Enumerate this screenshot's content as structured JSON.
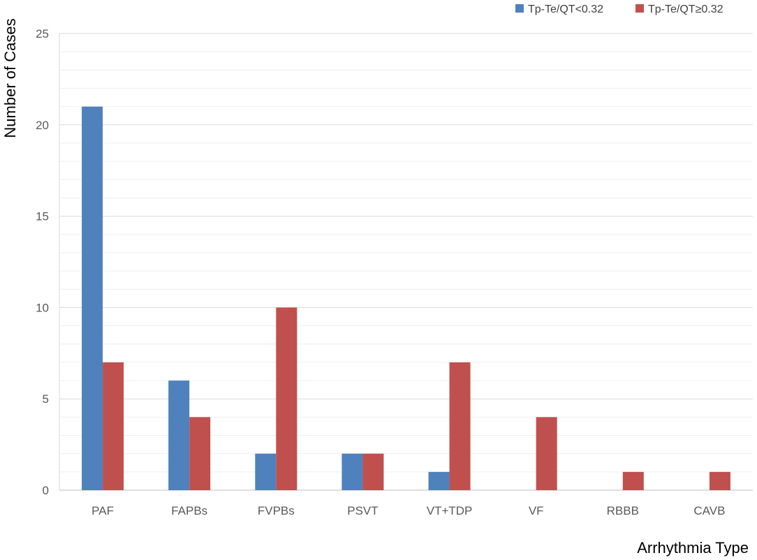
{
  "chart_data": {
    "type": "bar",
    "title": "",
    "xlabel": "Arrhythmia Type",
    "ylabel": "Number of Cases",
    "ylim": [
      0,
      25
    ],
    "major_tick_step": 5,
    "minor_grid_step": 1,
    "grid": true,
    "legend_position": "top-right",
    "categories": [
      "PAF",
      "FAPBs",
      "FVPBs",
      "PSVT",
      "VT+TDP",
      "VF",
      "RBBB",
      "CAVB"
    ],
    "series": [
      {
        "name": "Tp-Te/QT<0.32",
        "color": "#4F81BD",
        "values": [
          21,
          6,
          2,
          2,
          1,
          0,
          0,
          0
        ]
      },
      {
        "name": "Tp-Te/QT≥0.32",
        "color": "#C0504D",
        "values": [
          7,
          4,
          10,
          2,
          7,
          4,
          1,
          1
        ]
      }
    ]
  }
}
